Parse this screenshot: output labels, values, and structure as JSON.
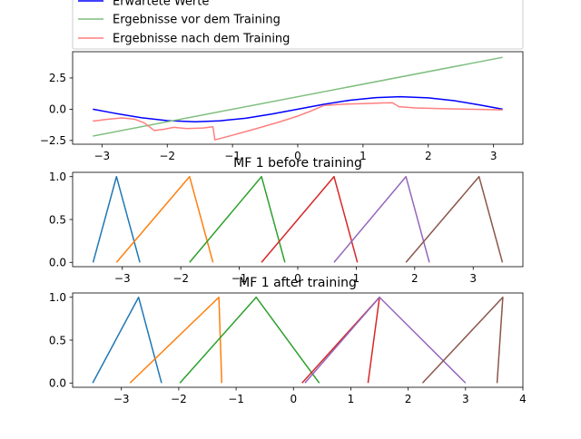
{
  "chart_data": [
    {
      "type": "line",
      "title": "",
      "xlabel": "",
      "ylabel": "",
      "xlim": [
        -3.45,
        3.45
      ],
      "ylim": [
        -2.8,
        4.6
      ],
      "xticks": [
        -3,
        -2,
        -1,
        0,
        1,
        2,
        3
      ],
      "yticks": [
        -2.5,
        0.0,
        2.5
      ],
      "xtick_labels": [
        "−3",
        "−2",
        "−1",
        "0",
        "1",
        "2",
        "3"
      ],
      "ytick_labels": [
        "−2.5",
        "0.0",
        "2.5"
      ],
      "grid": false,
      "legend": {
        "placement": "top-center",
        "entries": [
          {
            "label": "Erwartete Werte",
            "color": "#0000ff"
          },
          {
            "label": "Ergebnisse vor dem Training",
            "color": "#7fbf7f"
          },
          {
            "label": "Ergebnisse nach dem Training",
            "color": "#ff7f7f"
          }
        ]
      },
      "series": [
        {
          "name": "Erwartete Werte",
          "color": "#0000ff",
          "x": [
            -3.14,
            -2.8,
            -2.4,
            -2.0,
            -1.57,
            -1.2,
            -0.8,
            -0.4,
            0.0,
            0.4,
            0.8,
            1.2,
            1.57,
            2.0,
            2.4,
            2.8,
            3.14
          ],
          "y": [
            0.0,
            -0.33,
            -0.68,
            -0.91,
            -1.0,
            -0.93,
            -0.72,
            -0.39,
            0.0,
            0.39,
            0.72,
            0.93,
            1.0,
            0.91,
            0.68,
            0.33,
            0.0
          ]
        },
        {
          "name": "Ergebnisse vor dem Training",
          "color": "#7fbf7f",
          "x": [
            -3.14,
            3.14
          ],
          "y": [
            -2.15,
            4.15
          ]
        },
        {
          "name": "Ergebnisse nach dem Training",
          "color": "#ff7f7f",
          "x": [
            -3.14,
            -2.9,
            -2.7,
            -2.5,
            -2.35,
            -2.2,
            -2.05,
            -1.9,
            -1.7,
            -1.45,
            -1.3,
            -1.27,
            -1.05,
            -0.7,
            -0.3,
            0.0,
            0.2,
            0.4,
            0.7,
            1.0,
            1.3,
            1.45,
            1.55,
            1.8,
            2.2,
            2.6,
            3.14
          ],
          "y": [
            -0.95,
            -0.8,
            -0.7,
            -0.8,
            -1.1,
            -1.7,
            -1.6,
            -1.45,
            -1.55,
            -1.5,
            -1.4,
            -2.45,
            -2.15,
            -1.65,
            -1.05,
            -0.55,
            -0.15,
            0.3,
            0.4,
            0.45,
            0.5,
            0.52,
            0.2,
            0.1,
            0.05,
            0.0,
            -0.05
          ]
        }
      ]
    },
    {
      "type": "line",
      "title": "MF 1 before training",
      "xlabel": "",
      "ylabel": "",
      "xlim": [
        -3.85,
        3.85
      ],
      "ylim": [
        -0.05,
        1.05
      ],
      "xticks": [
        -3,
        -2,
        -1,
        0,
        1,
        2,
        3
      ],
      "yticks": [
        0.0,
        0.5,
        1.0
      ],
      "xtick_labels": [
        "−3",
        "−2",
        "−1",
        "0",
        "1",
        "2",
        "3"
      ],
      "ytick_labels": [
        "0.0",
        "0.5",
        "1.0"
      ],
      "grid": false,
      "series": [
        {
          "color": "#1f77b4",
          "x": [
            -3.5,
            -3.1,
            -2.7
          ],
          "y": [
            0,
            1,
            0
          ]
        },
        {
          "color": "#ff7f0e",
          "x": [
            -3.1,
            -1.85,
            -1.45
          ],
          "y": [
            0,
            1,
            0
          ]
        },
        {
          "color": "#2ca02c",
          "x": [
            -1.85,
            -0.62,
            -0.22
          ],
          "y": [
            0,
            1,
            0
          ]
        },
        {
          "color": "#d62728",
          "x": [
            -0.62,
            0.62,
            1.02
          ],
          "y": [
            0,
            1,
            0
          ]
        },
        {
          "color": "#9467bd",
          "x": [
            0.62,
            1.85,
            2.25
          ],
          "y": [
            0,
            1,
            0
          ]
        },
        {
          "color": "#8c564b",
          "x": [
            1.85,
            3.1,
            3.5
          ],
          "y": [
            0,
            1,
            0
          ]
        }
      ]
    },
    {
      "type": "line",
      "title": "MF 1 after training",
      "xlabel": "",
      "ylabel": "",
      "xlim": [
        -3.85,
        4.0
      ],
      "ylim": [
        -0.05,
        1.05
      ],
      "xticks": [
        -3,
        -2,
        -1,
        0,
        1,
        2,
        3,
        4
      ],
      "yticks": [
        0.0,
        0.5,
        1.0
      ],
      "xtick_labels": [
        "−3",
        "−2",
        "−1",
        "0",
        "1",
        "2",
        "3",
        "4"
      ],
      "ytick_labels": [
        "0.0",
        "0.5",
        "1.0"
      ],
      "grid": false,
      "series": [
        {
          "color": "#1f77b4",
          "x": [
            -3.5,
            -2.7,
            -2.3
          ],
          "y": [
            0,
            1,
            0
          ]
        },
        {
          "color": "#ff7f0e",
          "x": [
            -2.85,
            -1.3,
            -1.25
          ],
          "y": [
            0,
            1,
            0
          ]
        },
        {
          "color": "#2ca02c",
          "x": [
            -1.98,
            -0.65,
            0.45
          ],
          "y": [
            0,
            1,
            0
          ]
        },
        {
          "color": "#d62728",
          "x": [
            0.15,
            1.5,
            1.3
          ],
          "y": [
            0,
            1,
            0
          ]
        },
        {
          "color": "#9467bd",
          "x": [
            0.2,
            1.5,
            3.0
          ],
          "y": [
            0,
            1,
            0
          ]
        },
        {
          "color": "#8c564b",
          "x": [
            2.25,
            3.65,
            3.55
          ],
          "y": [
            0,
            1,
            0
          ]
        }
      ]
    }
  ]
}
